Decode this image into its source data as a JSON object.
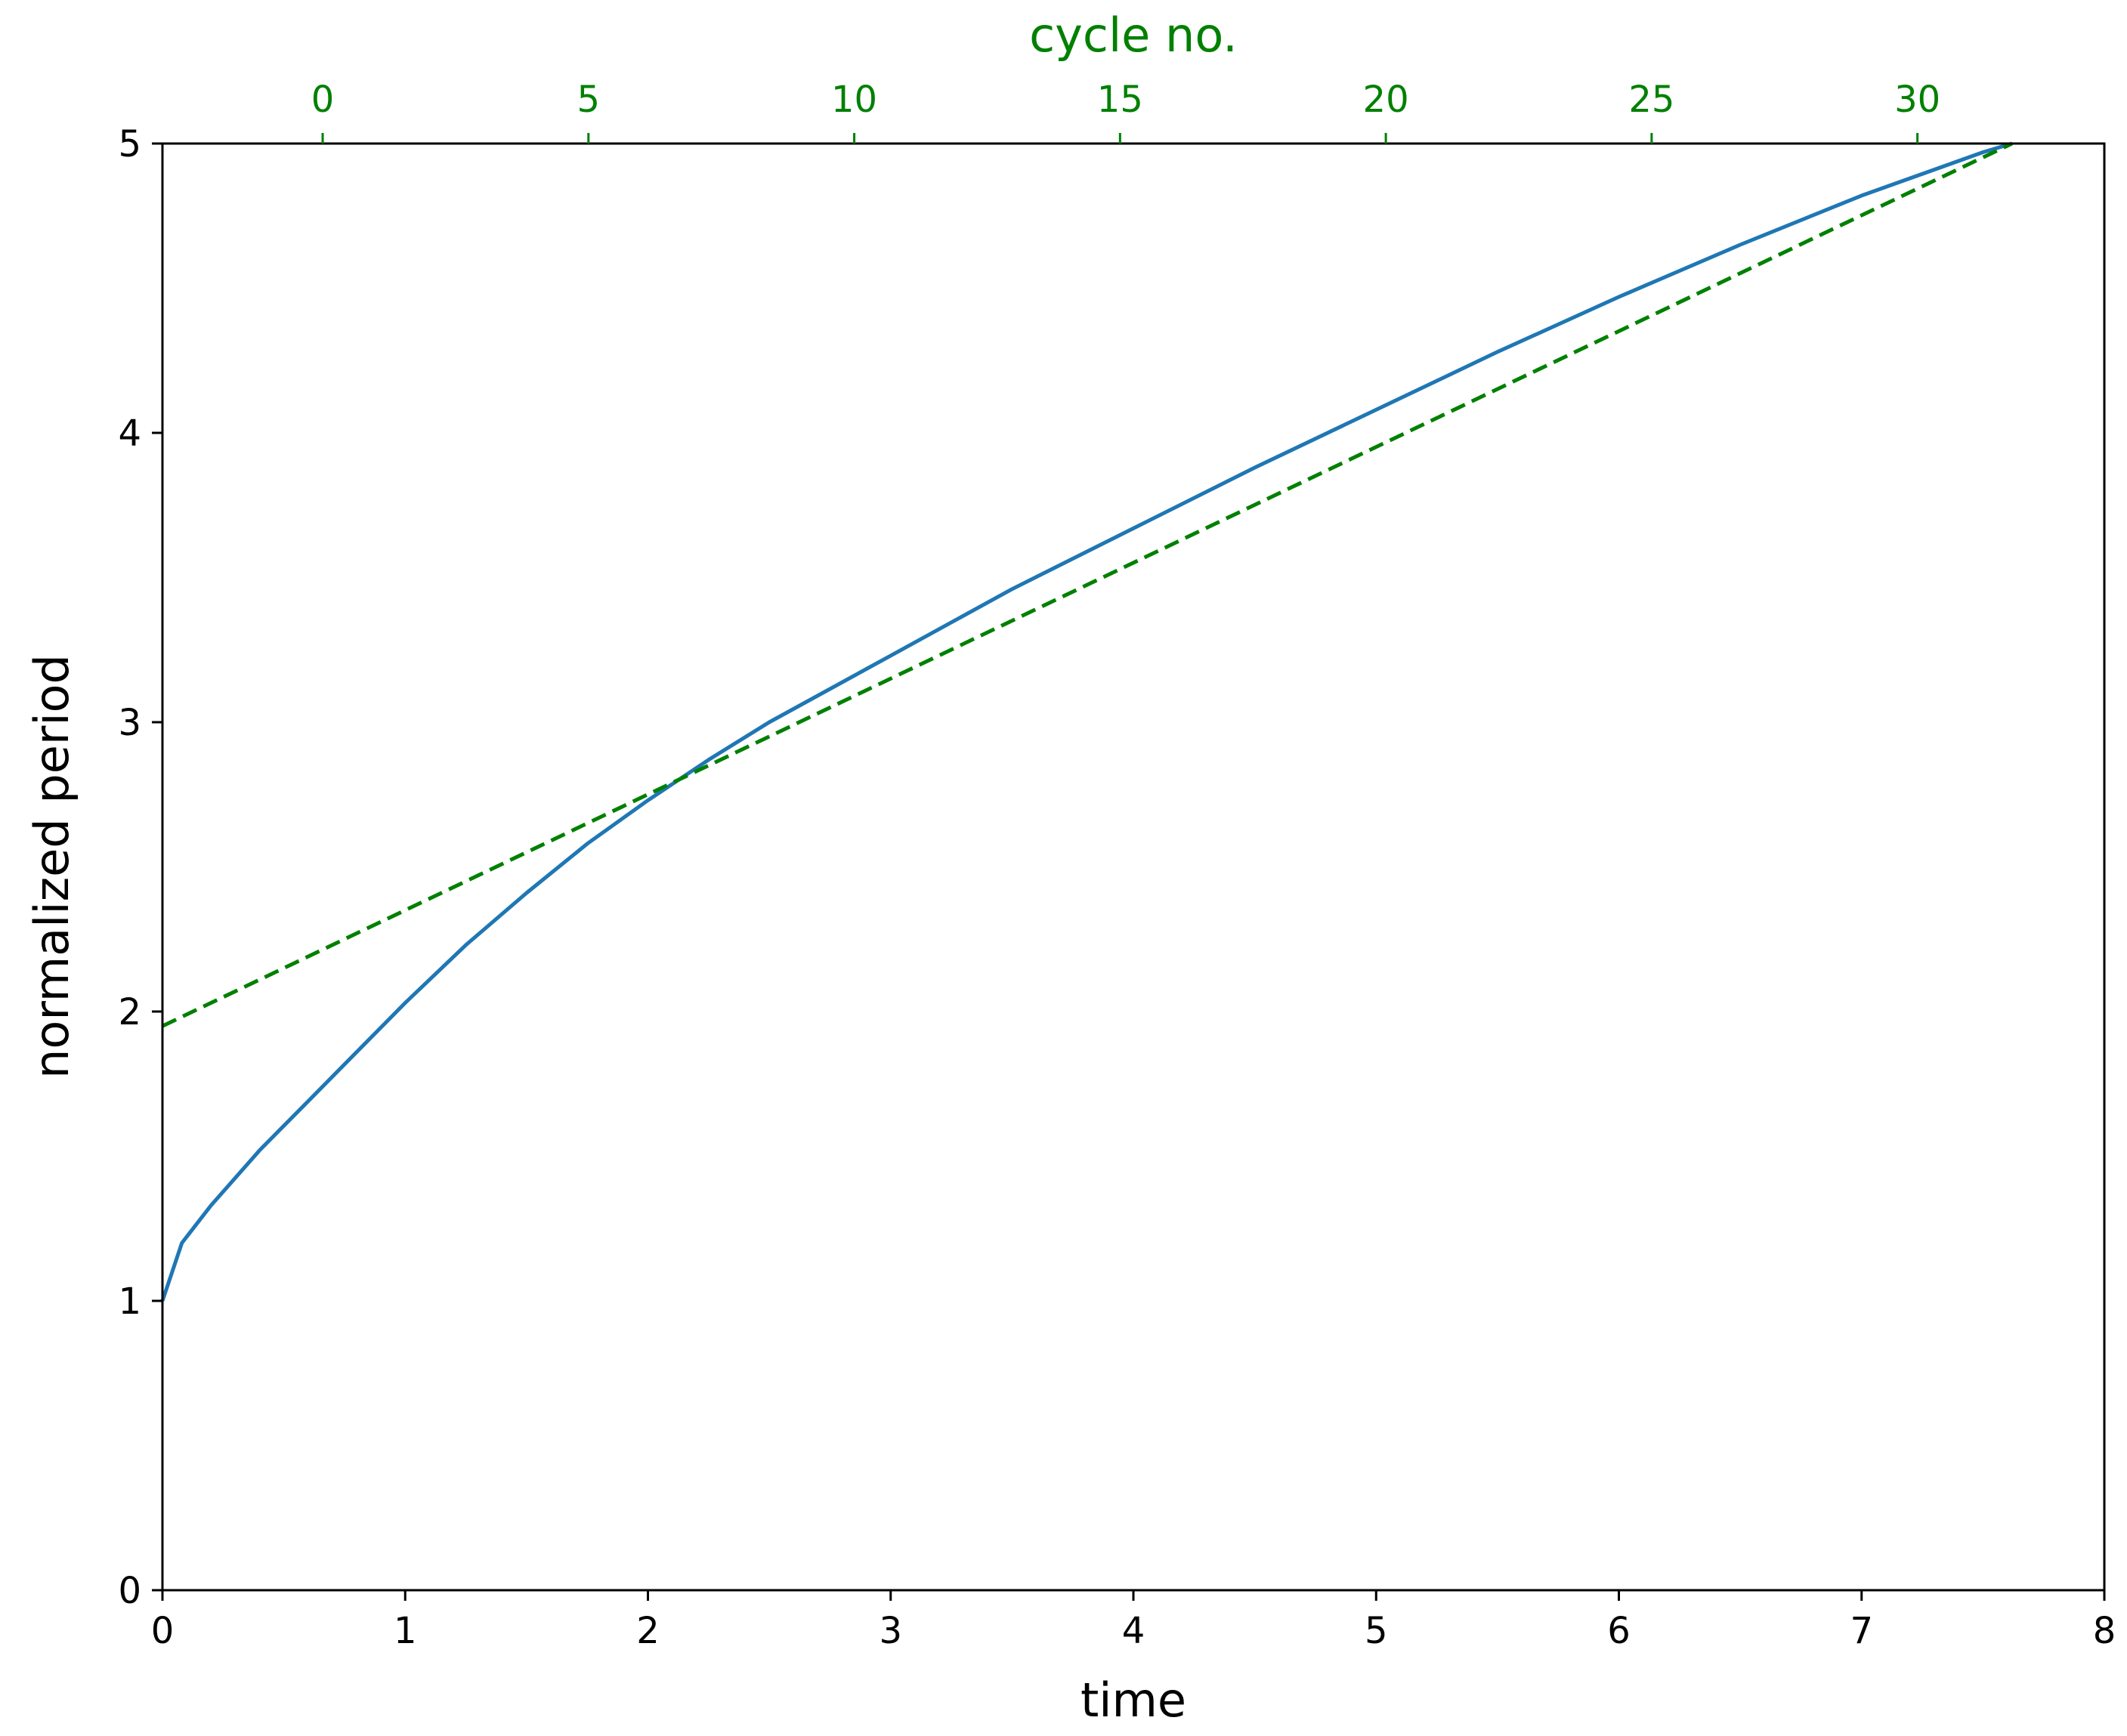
{
  "chart_data": {
    "type": "line",
    "title": "",
    "xlabel": "time",
    "ylabel": "normalized period",
    "top_xlabel": "cycle no.",
    "xlim": [
      0,
      8
    ],
    "ylim": [
      0,
      5
    ],
    "x_ticks": [
      "0",
      "1",
      "2",
      "3",
      "4",
      "5",
      "6",
      "7",
      "8"
    ],
    "y_ticks": [
      "0",
      "1",
      "2",
      "3",
      "4",
      "5"
    ],
    "top_x_ticks": [
      {
        "label": "0",
        "time": 0.66
      },
      {
        "label": "5",
        "time": 1.755
      },
      {
        "label": "10",
        "time": 2.85
      },
      {
        "label": "15",
        "time": 3.945
      },
      {
        "label": "20",
        "time": 5.04
      },
      {
        "label": "25",
        "time": 6.135
      },
      {
        "label": "30",
        "time": 7.23
      }
    ],
    "grid": false,
    "colors": {
      "solid_series": "#1f77b4",
      "dashed_series": "#008000",
      "top_axis": "#008000",
      "axes": "#000000"
    },
    "series": [
      {
        "style": "solid",
        "x": [
          0,
          0.08,
          0.2,
          0.4,
          0.6,
          0.8,
          1.0,
          1.25,
          1.5,
          1.75,
          2.0,
          2.25,
          2.5,
          3.0,
          3.5,
          4.0,
          4.5,
          5.0,
          5.5,
          6.0,
          6.5,
          7.0,
          7.5,
          7.62
        ],
        "y": [
          1.0,
          1.2,
          1.33,
          1.52,
          1.69,
          1.86,
          2.03,
          2.23,
          2.41,
          2.58,
          2.73,
          2.87,
          3.0,
          3.23,
          3.46,
          3.67,
          3.88,
          4.08,
          4.28,
          4.47,
          4.65,
          4.82,
          4.97,
          5.0
        ]
      },
      {
        "style": "dashed",
        "x": [
          0,
          7.62
        ],
        "y": [
          1.95,
          5.0
        ]
      }
    ]
  }
}
